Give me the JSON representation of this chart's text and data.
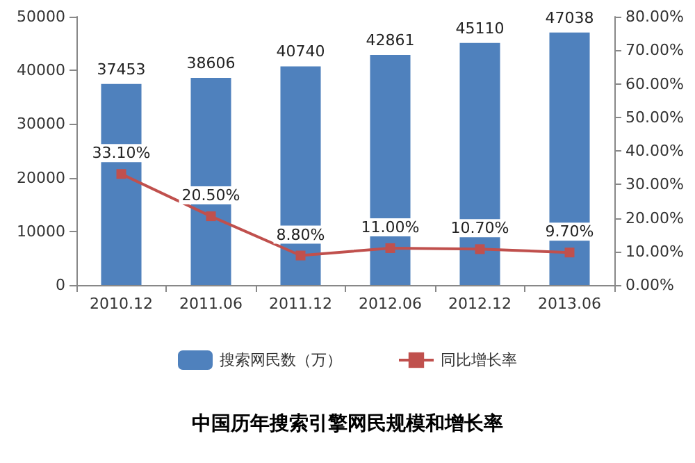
{
  "chart_data": {
    "type": "bar",
    "title": "中国历年搜索引擎网民规模和增长率",
    "categories": [
      "2010.12",
      "2011.06",
      "2011.12",
      "2012.06",
      "2012.12",
      "2013.06"
    ],
    "series": [
      {
        "name": "搜索网民数（万）",
        "color": "#4f81bd",
        "values": [
          37453,
          38606,
          40740,
          42861,
          45110,
          47038
        ],
        "value_labels": [
          "37453",
          "38606",
          "40740",
          "42861",
          "45110",
          "47038"
        ]
      },
      {
        "name": "同比增长率",
        "type": "line",
        "axis": "y2",
        "color": "#c0504d",
        "marker": "square",
        "values": [
          33.1,
          20.5,
          8.8,
          11.0,
          10.7,
          9.7
        ],
        "value_labels": [
          "33.10%",
          "20.50%",
          "8.80%",
          "11.00%",
          "10.70%",
          "9.70%"
        ]
      }
    ],
    "ylim": [
      0,
      50000
    ],
    "yticks": [
      0,
      10000,
      20000,
      30000,
      40000,
      50000
    ],
    "y2lim": [
      0,
      80
    ],
    "y2ticks": [
      {
        "value": 0,
        "label": "0.00%"
      },
      {
        "value": 10,
        "label": "10.00%"
      },
      {
        "value": 20,
        "label": "20.00%"
      },
      {
        "value": 30,
        "label": "30.00%"
      },
      {
        "value": 40,
        "label": "40.00%"
      },
      {
        "value": 50,
        "label": "50.00%"
      },
      {
        "value": 60,
        "label": "60.00%"
      },
      {
        "value": 70,
        "label": "70.00%"
      },
      {
        "value": 80,
        "label": "80.00%"
      }
    ],
    "legend": "bottom"
  }
}
